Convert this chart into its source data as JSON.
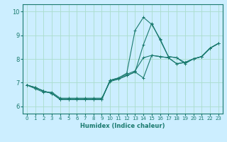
{
  "background_color": "#cceeff",
  "grid_color": "#aaddcc",
  "line_color": "#1a7a6e",
  "xlabel": "Humidex (Indice chaleur)",
  "xlim": [
    -0.5,
    23.5
  ],
  "ylim": [
    5.7,
    10.3
  ],
  "yticks": [
    6,
    7,
    8,
    9,
    10
  ],
  "xticks": [
    0,
    1,
    2,
    3,
    4,
    5,
    6,
    7,
    8,
    9,
    10,
    11,
    12,
    13,
    14,
    15,
    16,
    17,
    18,
    19,
    20,
    21,
    22,
    23
  ],
  "series": [
    {
      "x": [
        0,
        1,
        2,
        3,
        4,
        5,
        6,
        7,
        8,
        9,
        10,
        11,
        12,
        13,
        14,
        15,
        16,
        17,
        18,
        19,
        20,
        21,
        22,
        23
      ],
      "y": [
        6.9,
        6.8,
        6.65,
        6.55,
        6.3,
        6.3,
        6.3,
        6.3,
        6.3,
        6.3,
        7.1,
        7.15,
        7.3,
        7.45,
        7.2,
        8.15,
        8.1,
        8.05,
        7.8,
        7.85,
        8.0,
        8.1,
        8.45,
        8.65
      ]
    },
    {
      "x": [
        0,
        1,
        2,
        3,
        4,
        5,
        6,
        7,
        8,
        9,
        10,
        11,
        12,
        13,
        14,
        15,
        16,
        17,
        18,
        19,
        20,
        21,
        22,
        23
      ],
      "y": [
        6.9,
        6.8,
        6.65,
        6.55,
        6.3,
        6.3,
        6.3,
        6.3,
        6.3,
        6.3,
        7.1,
        7.2,
        7.4,
        9.2,
        9.75,
        9.45,
        8.85,
        8.1,
        8.05,
        7.85,
        8.0,
        8.1,
        8.45,
        8.65
      ]
    },
    {
      "x": [
        0,
        1,
        2,
        3,
        4,
        5,
        6,
        7,
        8,
        9,
        10,
        11,
        12,
        13,
        14,
        15,
        16,
        17,
        18,
        19,
        20,
        21,
        22,
        23
      ],
      "y": [
        6.9,
        6.8,
        6.65,
        6.55,
        6.3,
        6.3,
        6.3,
        6.3,
        6.3,
        6.3,
        7.1,
        7.2,
        7.35,
        7.5,
        8.05,
        8.15,
        8.1,
        8.05,
        7.8,
        7.85,
        8.0,
        8.1,
        8.45,
        8.65
      ]
    },
    {
      "x": [
        0,
        1,
        2,
        3,
        4,
        5,
        6,
        7,
        8,
        9,
        10,
        11,
        12,
        13,
        14,
        15,
        16,
        17,
        18,
        19,
        20,
        21,
        22,
        23
      ],
      "y": [
        6.9,
        6.75,
        6.6,
        6.6,
        6.35,
        6.35,
        6.35,
        6.35,
        6.35,
        6.35,
        7.05,
        7.15,
        7.3,
        7.45,
        8.6,
        9.5,
        8.8,
        8.1,
        8.05,
        7.8,
        8.0,
        8.1,
        8.45,
        8.65
      ]
    }
  ]
}
